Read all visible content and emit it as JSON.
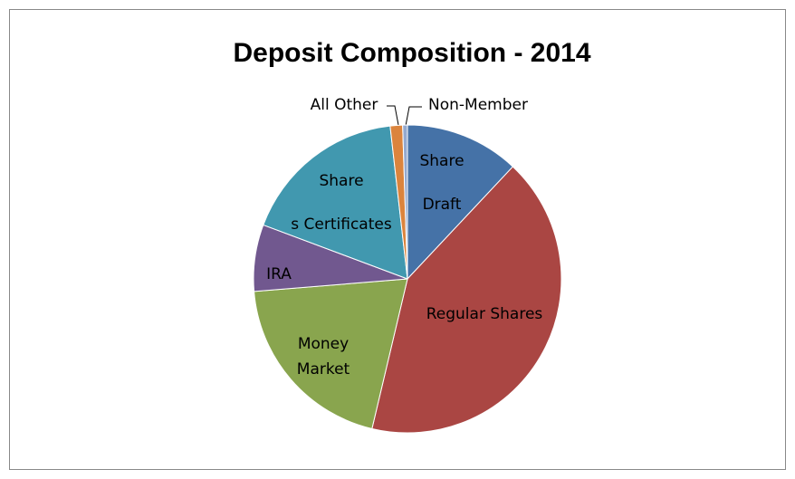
{
  "chart_data": {
    "type": "pie",
    "title": "Deposit Composition - 2014",
    "categories": [
      [
        "Share",
        "Draft"
      ],
      [
        "Regular Shares"
      ],
      [
        "Money",
        "Market"
      ],
      [
        "IRA"
      ],
      [
        "Share",
        "s Certificates"
      ],
      [
        "All Other"
      ],
      [
        "Non-Member"
      ]
    ],
    "values": [
      12,
      41.7,
      20,
      7,
      17.5,
      1.3,
      0.5
    ],
    "colors": [
      "#4572a7",
      "#aa4643",
      "#89a54e",
      "#71588f",
      "#4198af",
      "#db843d",
      "#93a9cf"
    ]
  }
}
